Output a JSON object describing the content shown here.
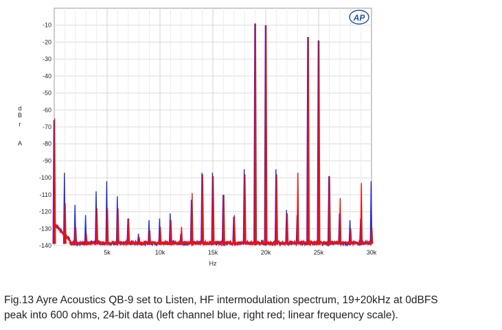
{
  "chart_data": {
    "type": "line",
    "title": "",
    "xlabel": "Hz",
    "ylabel": [
      "d",
      "B",
      "r",
      "A"
    ],
    "xlim": [
      0,
      30000
    ],
    "ylim": [
      -140,
      0
    ],
    "x_ticks": [
      5000,
      10000,
      15000,
      20000,
      25000,
      30000
    ],
    "x_tick_labels": [
      "5k",
      "10k",
      "15k",
      "20k",
      "25k",
      "30k"
    ],
    "y_ticks": [
      -10,
      -20,
      -30,
      -40,
      -50,
      -60,
      -70,
      -80,
      -90,
      -100,
      -110,
      -120,
      -130,
      -140
    ],
    "y_tick_labels": [
      "-10",
      "-20",
      "-30",
      "-40",
      "-50",
      "-60",
      "-70",
      "-80",
      "-90",
      "-100",
      "-110",
      "-120",
      "-130",
      "-140"
    ],
    "grid": true,
    "logo": "AP",
    "noise_floor_db": -139,
    "series": [
      {
        "color": "#1f2fd6",
        "peaks": [
          {
            "x": 0,
            "y": -66
          },
          {
            "x": 1000,
            "y": -97
          },
          {
            "x": 2000,
            "y": -116
          },
          {
            "x": 3000,
            "y": -122
          },
          {
            "x": 4000,
            "y": -108
          },
          {
            "x": 5000,
            "y": -102
          },
          {
            "x": 6000,
            "y": -111
          },
          {
            "x": 7000,
            "y": -124
          },
          {
            "x": 8000,
            "y": -133
          },
          {
            "x": 9000,
            "y": -125
          },
          {
            "x": 10000,
            "y": -124
          },
          {
            "x": 11000,
            "y": -121
          },
          {
            "x": 12000,
            "y": -133
          },
          {
            "x": 13000,
            "y": -113
          },
          {
            "x": 14000,
            "y": -97
          },
          {
            "x": 15000,
            "y": -97
          },
          {
            "x": 16000,
            "y": -110
          },
          {
            "x": 17000,
            "y": -123
          },
          {
            "x": 18000,
            "y": -95
          },
          {
            "x": 19000,
            "y": -9
          },
          {
            "x": 20000,
            "y": -10
          },
          {
            "x": 21000,
            "y": -95
          },
          {
            "x": 22000,
            "y": -119
          },
          {
            "x": 23000,
            "y": -122
          },
          {
            "x": 24000,
            "y": -17
          },
          {
            "x": 25000,
            "y": -19
          },
          {
            "x": 26000,
            "y": -99
          },
          {
            "x": 27000,
            "y": -121
          },
          {
            "x": 28000,
            "y": -125
          },
          {
            "x": 29000,
            "y": -124
          },
          {
            "x": 30000,
            "y": -102
          }
        ]
      },
      {
        "color": "#ee1111",
        "peaks": [
          {
            "x": 0,
            "y": -65
          },
          {
            "x": 1000,
            "y": -115
          },
          {
            "x": 2000,
            "y": -129
          },
          {
            "x": 3000,
            "y": -133
          },
          {
            "x": 4000,
            "y": -118
          },
          {
            "x": 5000,
            "y": -118
          },
          {
            "x": 6000,
            "y": -118
          },
          {
            "x": 7000,
            "y": -124
          },
          {
            "x": 8000,
            "y": -135
          },
          {
            "x": 9000,
            "y": -131
          },
          {
            "x": 10000,
            "y": -129
          },
          {
            "x": 11000,
            "y": -125
          },
          {
            "x": 12000,
            "y": -129
          },
          {
            "x": 13000,
            "y": -109
          },
          {
            "x": 14000,
            "y": -98
          },
          {
            "x": 15000,
            "y": -99
          },
          {
            "x": 16000,
            "y": -110
          },
          {
            "x": 17000,
            "y": -122
          },
          {
            "x": 18000,
            "y": -98
          },
          {
            "x": 19000,
            "y": -9
          },
          {
            "x": 20000,
            "y": -10
          },
          {
            "x": 21000,
            "y": -98
          },
          {
            "x": 22000,
            "y": -121
          },
          {
            "x": 23000,
            "y": -97
          },
          {
            "x": 24000,
            "y": -17
          },
          {
            "x": 25000,
            "y": -19
          },
          {
            "x": 26000,
            "y": -99
          },
          {
            "x": 27000,
            "y": -112
          },
          {
            "x": 28000,
            "y": -130
          },
          {
            "x": 29000,
            "y": -103
          },
          {
            "x": 30000,
            "y": -129
          }
        ]
      }
    ]
  },
  "caption": {
    "line1": "Fig.13 Ayre Acoustics QB-9 set to Listen, HF intermodulation spectrum, 19+20kHz at 0dBFS",
    "line2": "peak into 600 ohms, 24-bit data (left channel blue, right red; linear frequency scale)."
  }
}
